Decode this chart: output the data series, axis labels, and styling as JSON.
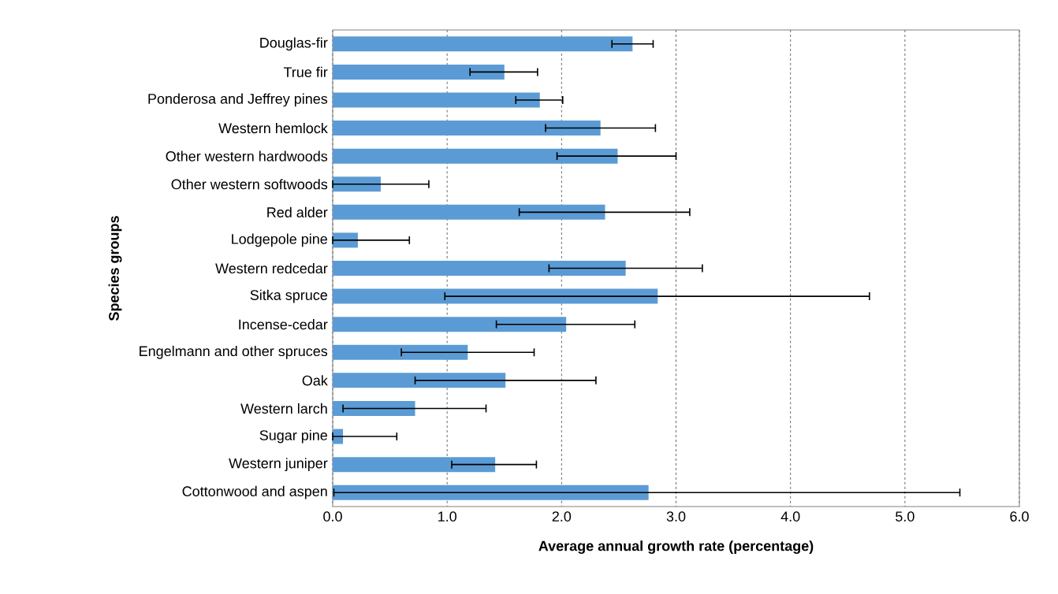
{
  "chart_data": {
    "type": "bar",
    "orientation": "horizontal",
    "xlabel": "Average annual growth rate (percentage)",
    "ylabel": "Species groups",
    "categories": [
      "Douglas-fir",
      "True fir",
      "Ponderosa and Jeffrey pines",
      "Western hemlock",
      "Other western hardwoods",
      "Other western softwoods",
      "Red alder",
      "Lodgepole pine",
      "Western redcedar",
      "Sitka spruce",
      "Incense-cedar",
      "Engelmann and other spruces",
      "Oak",
      "Western larch",
      "Sugar pine",
      "Western juniper",
      "Cottonwood and aspen"
    ],
    "values": [
      2.62,
      1.5,
      1.81,
      2.34,
      2.49,
      0.42,
      2.38,
      0.22,
      2.56,
      2.84,
      2.04,
      1.18,
      1.51,
      0.72,
      0.09,
      1.42,
      2.76
    ],
    "errors": [
      [
        2.44,
        2.8
      ],
      [
        1.2,
        1.79
      ],
      [
        1.6,
        2.01
      ],
      [
        1.86,
        2.82
      ],
      [
        1.96,
        3.0
      ],
      [
        0.0,
        0.84
      ],
      [
        1.63,
        3.12
      ],
      [
        0.0,
        0.67
      ],
      [
        1.89,
        3.23
      ],
      [
        0.98,
        4.69
      ],
      [
        1.43,
        2.64
      ],
      [
        0.6,
        1.76
      ],
      [
        0.72,
        2.3
      ],
      [
        0.09,
        1.34
      ],
      [
        0.0,
        0.56
      ],
      [
        1.04,
        1.78
      ],
      [
        0.01,
        5.48
      ]
    ],
    "color": "#5b9bd5",
    "xlim": [
      0,
      6
    ],
    "xticks": [
      {
        "value": 0,
        "label": "0.0"
      },
      {
        "value": 1,
        "label": "1.0"
      },
      {
        "value": 2,
        "label": "2.0"
      },
      {
        "value": 3,
        "label": "3.0"
      },
      {
        "value": 4,
        "label": "4.0"
      },
      {
        "value": 5,
        "label": "5.0"
      },
      {
        "value": 6,
        "label": "6.0"
      }
    ],
    "grid": "x"
  }
}
